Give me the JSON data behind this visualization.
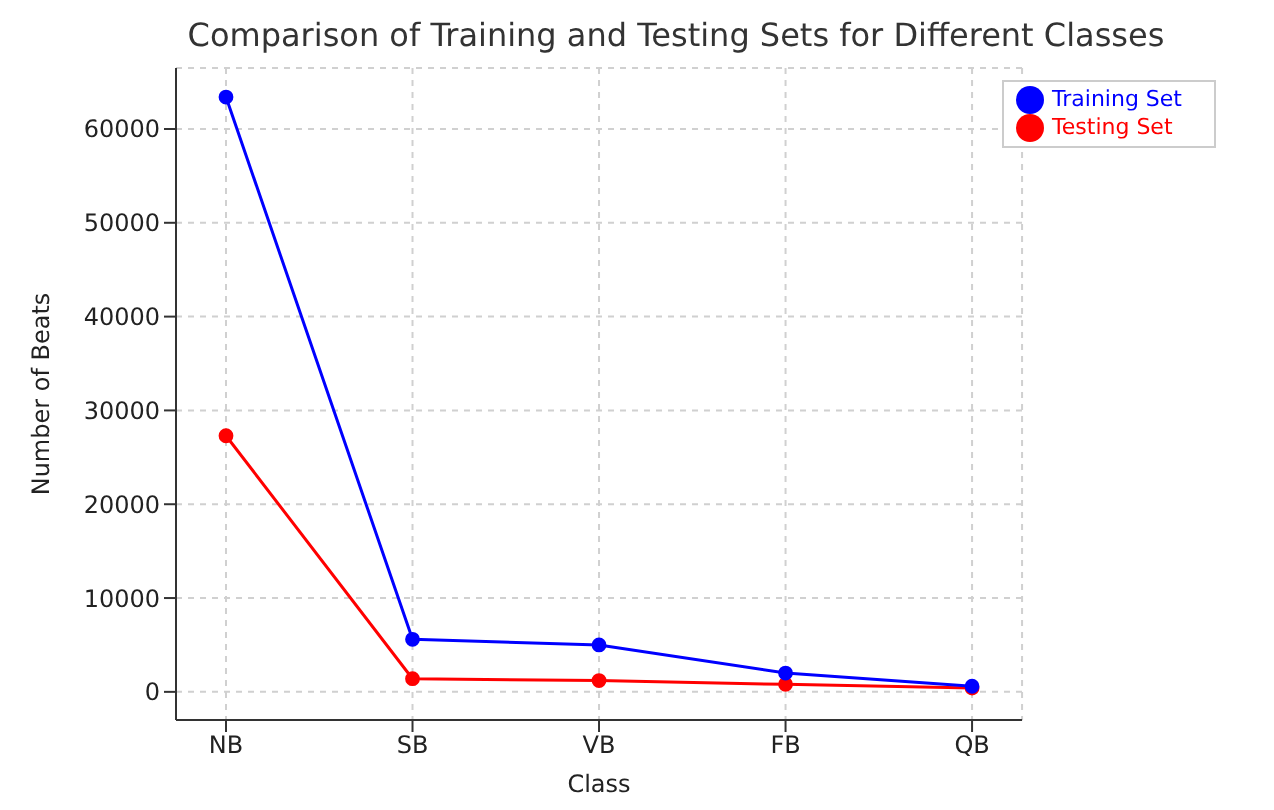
{
  "chart_data": {
    "type": "line",
    "title": "Comparison of Training and Testing Sets for Different Classes",
    "xlabel": "Class",
    "ylabel": "Number of Beats",
    "categories": [
      "NB",
      "SB",
      "VB",
      "FB",
      "QB"
    ],
    "series": [
      {
        "name": "Training Set",
        "color": "#0000ff",
        "values": [
          63400,
          5600,
          5000,
          2000,
          600
        ]
      },
      {
        "name": "Testing Set",
        "color": "#ff0000",
        "values": [
          27300,
          1400,
          1200,
          800,
          400
        ]
      }
    ],
    "ylim": [
      -3000,
      66500
    ],
    "yticks": [
      0,
      10000,
      20000,
      30000,
      40000,
      50000,
      60000
    ],
    "grid": true,
    "legend": "top right",
    "marker": "circle",
    "line_style": "solid"
  }
}
